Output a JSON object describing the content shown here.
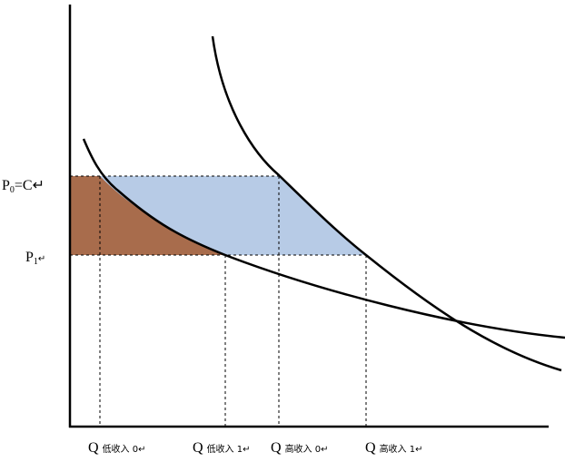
{
  "labels": {
    "p0": {
      "main": "P",
      "sub": "0",
      "rest": "=C↵"
    },
    "p1": {
      "main": "P",
      "sub": "1",
      "rest": "↵"
    },
    "q_low_0": {
      "main": "Q",
      "rest": "低收入 0↵"
    },
    "q_low_1": {
      "main": "Q",
      "rest": "低收入 1↵"
    },
    "q_high_0": {
      "main": "Q",
      "rest": "高收入 0↵"
    },
    "q_high_1": {
      "main": "Q",
      "rest": "高收入 1↵"
    }
  }
}
